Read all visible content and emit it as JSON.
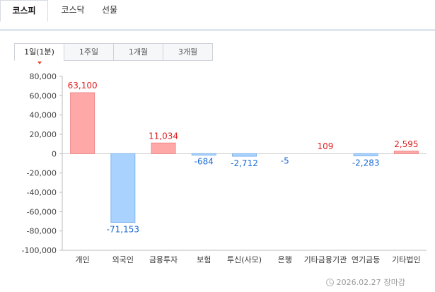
{
  "market_tabs": [
    {
      "label": "코스피",
      "active": true
    },
    {
      "label": "코스닥",
      "active": false
    },
    {
      "label": "선물",
      "active": false
    }
  ],
  "period_tabs": [
    {
      "label": "1일(1분)",
      "active": true
    },
    {
      "label": "1주일",
      "active": false
    },
    {
      "label": "1개월",
      "active": false
    },
    {
      "label": "3개월",
      "active": false
    }
  ],
  "footer": {
    "date": "2026.02.27",
    "status": "장마감"
  },
  "colors": {
    "positive_bar": "#ffa8a8",
    "positive_bar_stroke": "#f08787",
    "negative_bar": "#aad2ff",
    "negative_bar_stroke": "#7fb5ee",
    "positive_label": "#e02020",
    "negative_label": "#1a6ad6",
    "accent": "#e8472b"
  },
  "chart_data": {
    "type": "bar",
    "title": "",
    "xlabel": "",
    "ylabel": "",
    "categories": [
      "개인",
      "외국인",
      "금융투자",
      "보험",
      "투신(사모)",
      "은행",
      "기타금융기관",
      "연기금등",
      "기타법인"
    ],
    "values": [
      63100,
      -71153,
      11034,
      -684,
      -2712,
      -5,
      109,
      -2283,
      2595
    ],
    "value_labels": [
      "63,100",
      "-71,153",
      "11,034",
      "-684",
      "-2,712",
      "-5",
      "109",
      "-2,283",
      "2,595"
    ],
    "ylim": [
      -100000,
      80000
    ],
    "yticks": [
      80000,
      60000,
      40000,
      20000,
      0,
      -20000,
      -40000,
      -60000,
      -80000,
      -100000
    ],
    "ytick_labels": [
      "80,000",
      "60,000",
      "40,000",
      "20,000",
      "0",
      "-20,000",
      "-40,000",
      "-60,000",
      "-80,000",
      "-100,000"
    ],
    "grid": false,
    "legend": "none"
  }
}
